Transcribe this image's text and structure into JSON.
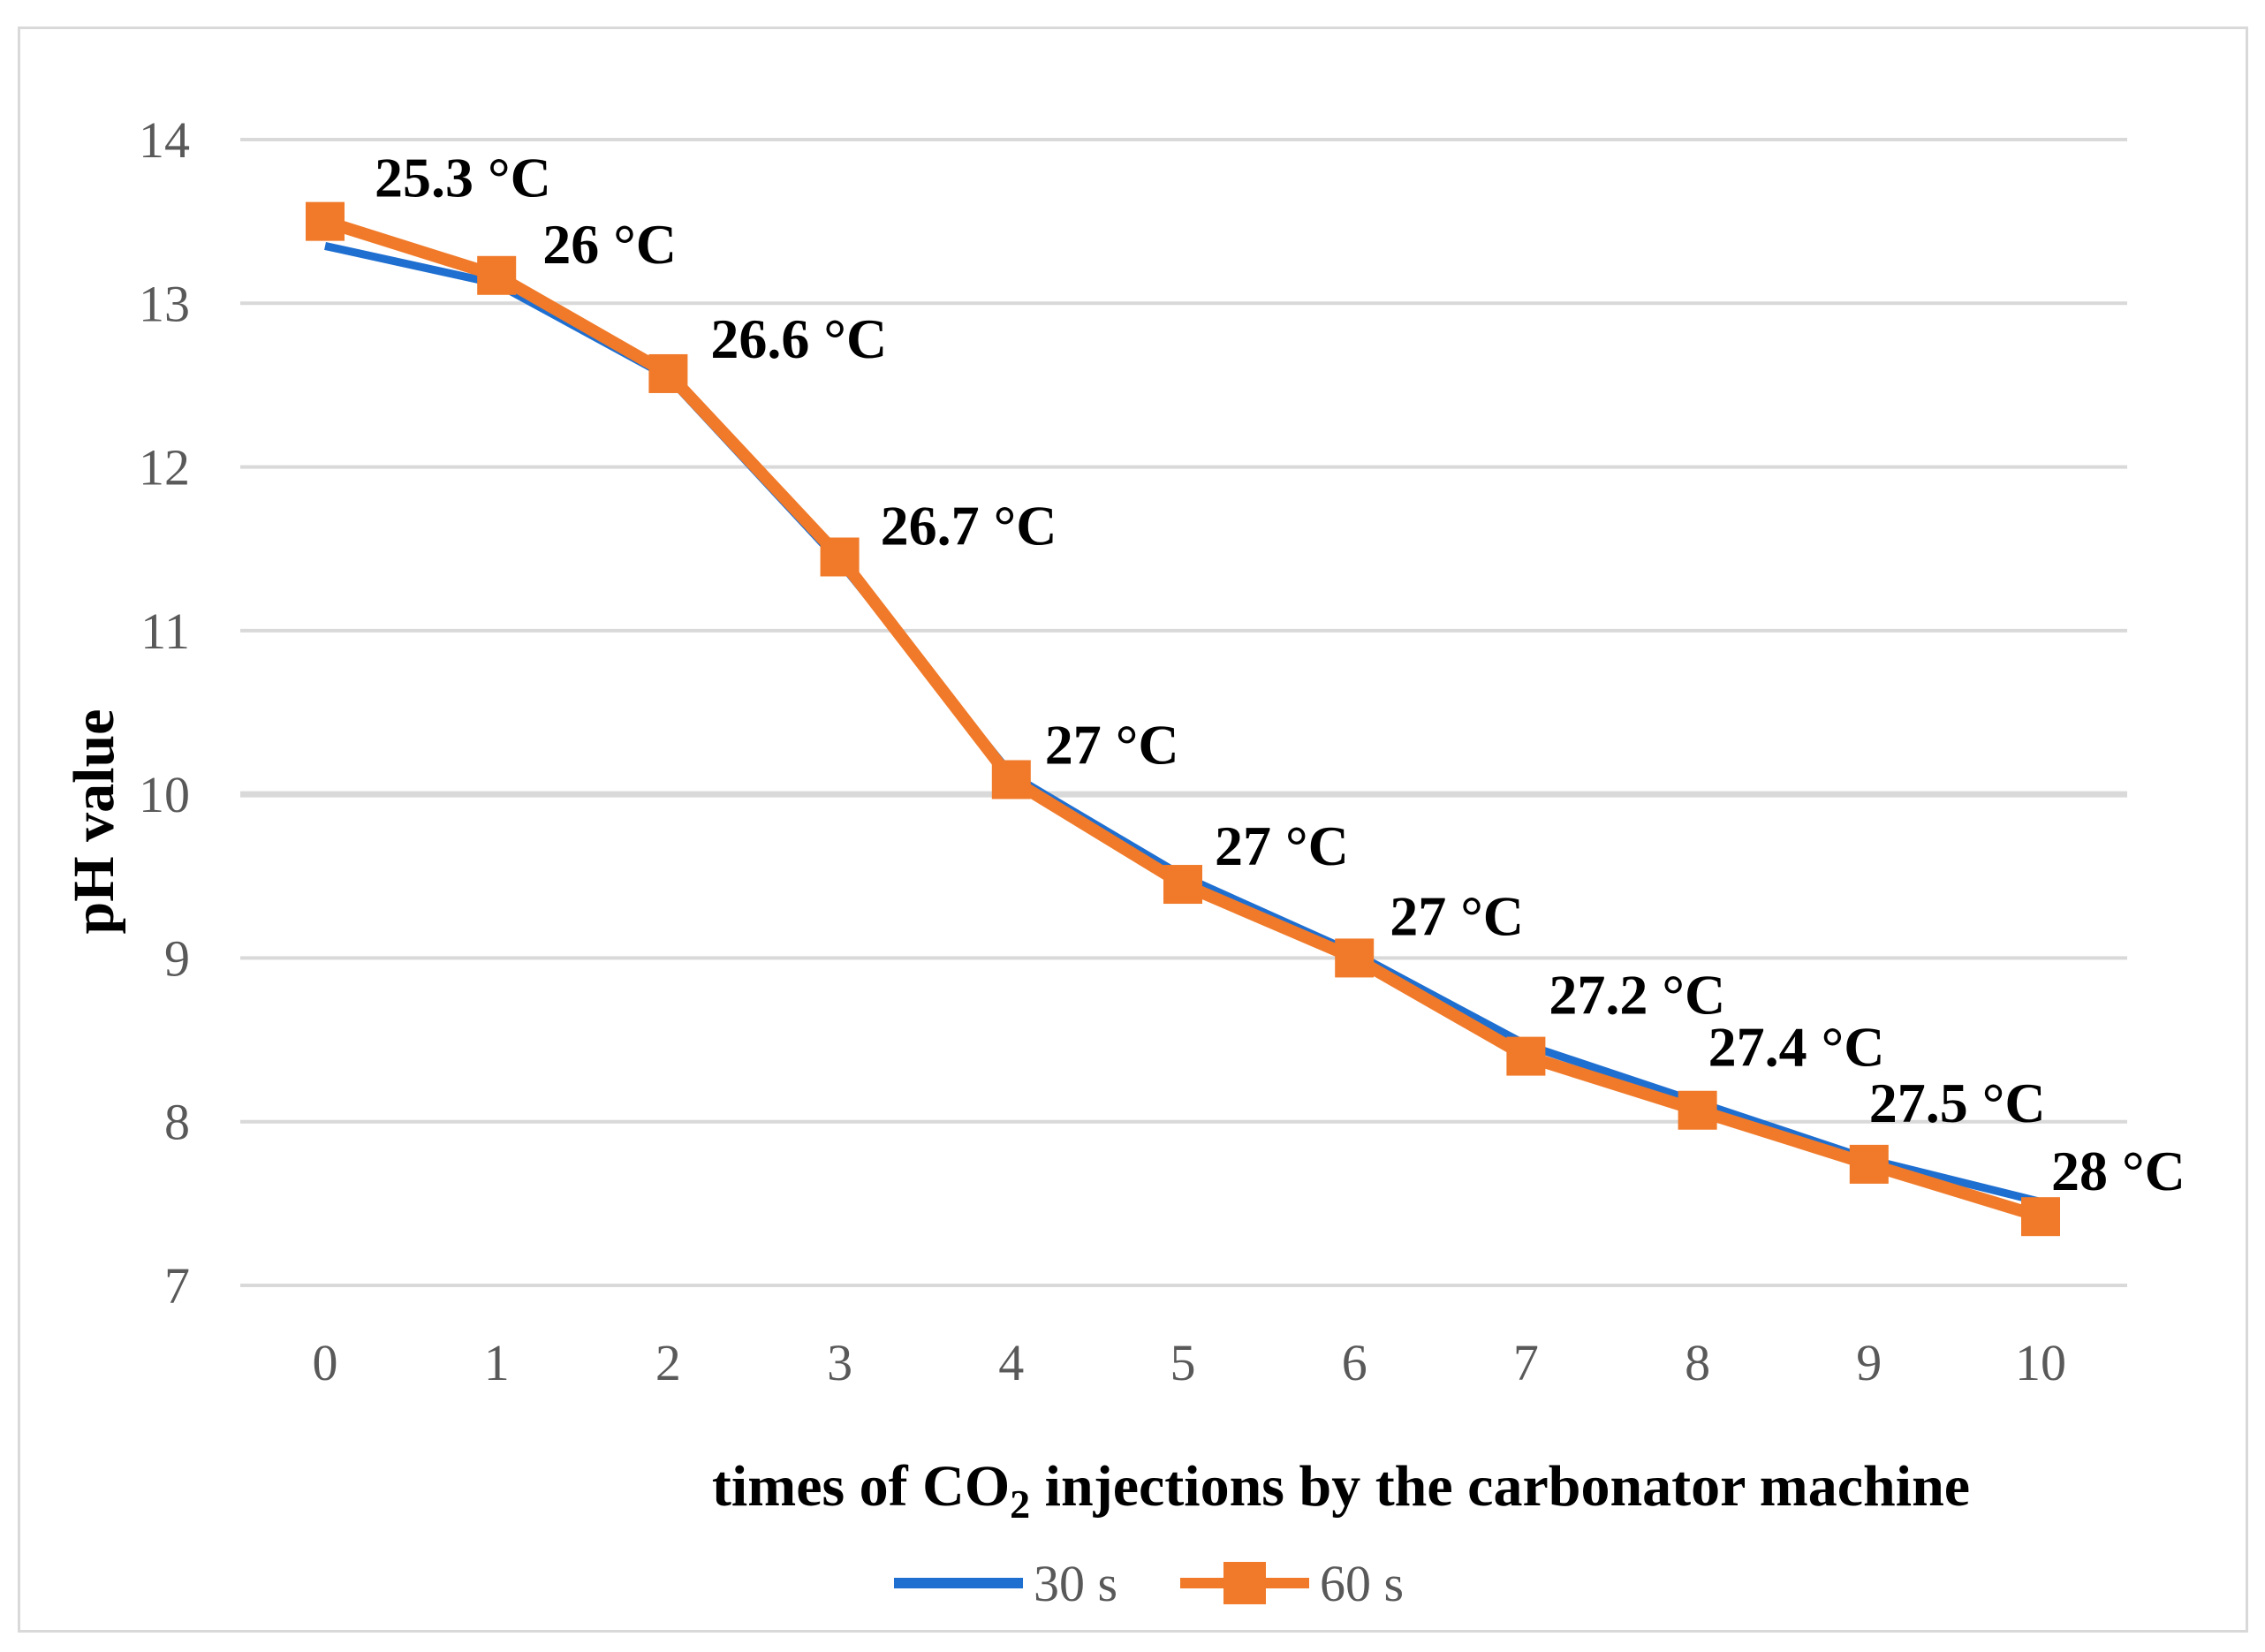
{
  "chart_data": {
    "type": "line",
    "title": "",
    "x": [
      0,
      1,
      2,
      3,
      4,
      5,
      6,
      7,
      8,
      9,
      10
    ],
    "xlabel": {
      "prefix": "times of CO",
      "subscript": "2",
      "suffix": " injections by the carbonator machine"
    },
    "ylabel": "pH value",
    "ylim": [
      7,
      14
    ],
    "yticks": [
      7,
      8,
      9,
      10,
      11,
      12,
      13,
      14
    ],
    "grid": true,
    "legend_position": "bottom",
    "series": [
      {
        "name": "30 s",
        "color": "#1f6fd1",
        "marker": "none",
        "values": [
          13.35,
          13.12,
          12.55,
          11.42,
          10.12,
          9.5,
          9.03,
          8.47,
          8.12,
          7.77,
          7.51
        ]
      },
      {
        "name": "60 s",
        "color": "#f07a2a",
        "marker": "square",
        "values": [
          13.5,
          13.17,
          12.57,
          11.45,
          10.09,
          9.45,
          9.0,
          8.4,
          8.07,
          7.74,
          7.42
        ]
      }
    ],
    "annotations": [
      "25.3 °C",
      "26 °C",
      "26.6 °C",
      "26.7 °C",
      "27 °C",
      "27 °C",
      "27 °C",
      "27.2 °C",
      "27.4 °C",
      "27.5 °C",
      "28 °C"
    ]
  }
}
